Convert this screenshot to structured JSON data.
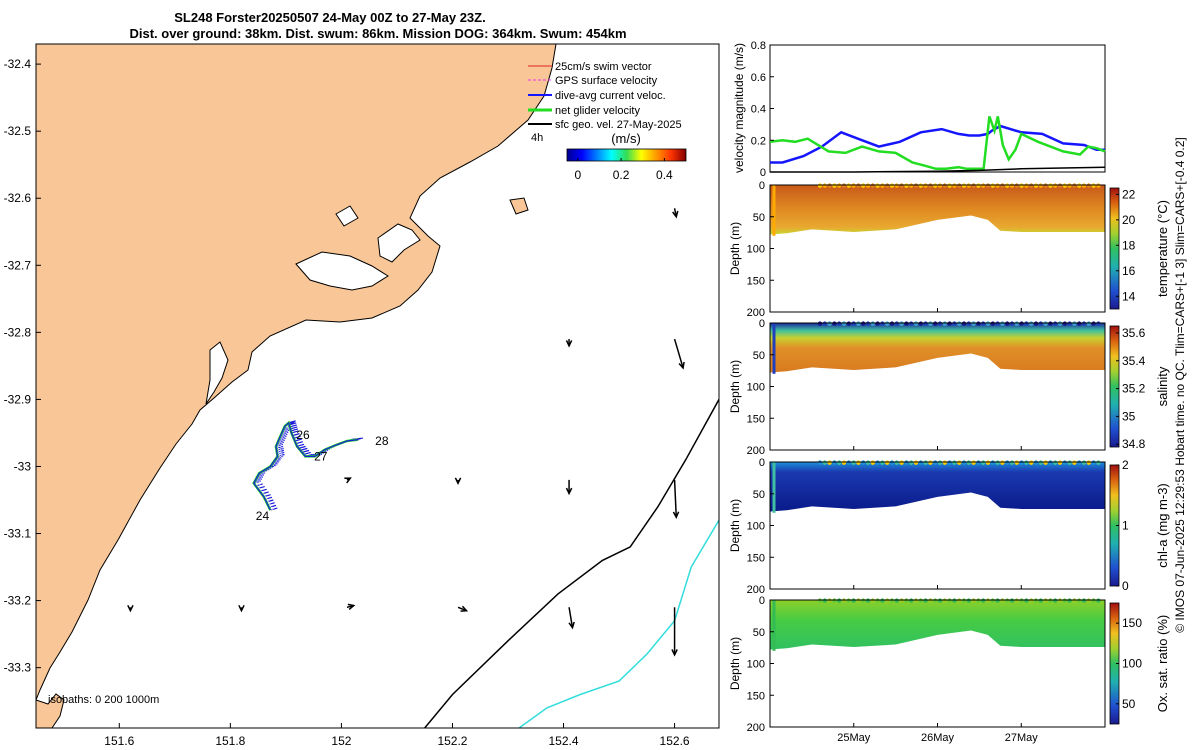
{
  "title": {
    "line1": "SL248 Forster20250507 24-May 00Z to 27-May 23Z.",
    "line2": "Dist. over ground: 38km. Dist. swum: 86km. Mission DOG: 364km. Swum: 454km"
  },
  "footer_note": "© IMOS 07-Jun-2025 12:29:53 Hobart time. no QC. Tlim=CARS+[-1 3] Slim=CARS+[-0.4 0.2]",
  "colors": {
    "land": "#f9c797",
    "track": "#1a1adb",
    "current": "#1515ff",
    "net": "#22dd22",
    "geo": "#000000",
    "isobath_200": "#000000",
    "isobath_1000": "#33dddd",
    "swim": "#dd2222",
    "gps": "#ee33ee"
  },
  "chart_data": [
    {
      "type": "map",
      "xlim": [
        151.45,
        152.68
      ],
      "ylim": [
        -33.39,
        -32.37
      ],
      "x_ticks": [
        151.6,
        151.8,
        152,
        152.2,
        152.4,
        152.6
      ],
      "x_tick_labels": [
        "151.6",
        "151.8",
        "152",
        "152.2",
        "152.4",
        "152.6"
      ],
      "y_ticks": [
        -32.4,
        -32.5,
        -32.6,
        -32.7,
        -32.8,
        -32.9,
        -33,
        -33.1,
        -33.2,
        -33.3
      ],
      "y_tick_labels": [
        "-32.4",
        "-32.5",
        "-32.6",
        "-32.7",
        "-32.8",
        "-32.9",
        "-33",
        "-33.1",
        "-33.2",
        "-33.3"
      ],
      "legend": [
        {
          "label": "25cm/s swim vector",
          "color": "#dd2222"
        },
        {
          "label": "GPS surface velocity",
          "color": "#ee33ee"
        },
        {
          "label": "dive-avg current veloc.",
          "color": "#1515ff"
        },
        {
          "label": "net glider velocity",
          "color": "#22dd22"
        },
        {
          "label": "sfc geo. vel. 27-May-2025",
          "color": "#000000"
        }
      ],
      "legend_extra": "4h",
      "colorbar": {
        "label": "(m/s)",
        "ticks": [
          0,
          0.2,
          0.4
        ],
        "tick_labels": [
          "0",
          "0.2",
          "0.4"
        ],
        "range": [
          -0.05,
          0.5
        ]
      },
      "isobath_label": "isobaths: 0   200  1000m",
      "day_labels": [
        {
          "text": "24",
          "lon": 151.835,
          "lat": -33.074
        },
        {
          "text": "26",
          "lon": 151.908,
          "lat": -32.953
        },
        {
          "text": "27",
          "lon": 151.94,
          "lat": -32.985
        },
        {
          "text": "28",
          "lon": 152.05,
          "lat": -32.962
        }
      ],
      "glider_track": [
        [
          151.872,
          -33.065
        ],
        [
          151.86,
          -33.045
        ],
        [
          151.842,
          -33.025
        ],
        [
          151.852,
          -33.01
        ],
        [
          151.872,
          -33.0
        ],
        [
          151.885,
          -32.985
        ],
        [
          151.882,
          -32.97
        ],
        [
          151.89,
          -32.955
        ],
        [
          151.898,
          -32.94
        ],
        [
          151.905,
          -32.935
        ],
        [
          151.91,
          -32.95
        ],
        [
          151.92,
          -32.97
        ],
        [
          151.935,
          -32.985
        ],
        [
          151.952,
          -32.985
        ],
        [
          151.97,
          -32.975
        ],
        [
          151.99,
          -32.968
        ],
        [
          152.01,
          -32.962
        ],
        [
          152.03,
          -32.96
        ]
      ],
      "isobath_200m": [
        [
          152.15,
          -33.39
        ],
        [
          152.2,
          -33.34
        ],
        [
          152.3,
          -33.26
        ],
        [
          152.39,
          -33.19
        ],
        [
          152.47,
          -33.14
        ],
        [
          152.52,
          -33.12
        ],
        [
          152.57,
          -33.06
        ],
        [
          152.62,
          -32.99
        ],
        [
          152.68,
          -32.9
        ]
      ],
      "isobath_1000m": [
        [
          152.32,
          -33.39
        ],
        [
          152.37,
          -33.36
        ],
        [
          152.43,
          -33.34
        ],
        [
          152.5,
          -33.32
        ],
        [
          152.55,
          -33.28
        ],
        [
          152.6,
          -33.23
        ],
        [
          152.63,
          -33.15
        ],
        [
          152.68,
          -33.08
        ]
      ],
      "geo_vectors": [
        {
          "lon": 152.6,
          "lat": -32.615,
          "u": 0.01,
          "v": -0.05
        },
        {
          "lon": 152.41,
          "lat": -32.81,
          "u": 0.0,
          "v": -0.04
        },
        {
          "lon": 152.6,
          "lat": -32.81,
          "u": 0.05,
          "v": -0.17
        },
        {
          "lon": 152.21,
          "lat": -33.02,
          "u": 0.0,
          "v": -0.02
        },
        {
          "lon": 152.41,
          "lat": -33.02,
          "u": 0.0,
          "v": -0.08
        },
        {
          "lon": 152.6,
          "lat": -33.02,
          "u": 0.01,
          "v": -0.22
        },
        {
          "lon": 152.01,
          "lat": -33.02,
          "u": 0.02,
          "v": 0.01
        },
        {
          "lon": 151.82,
          "lat": -33.21,
          "u": 0.0,
          "v": -0.02
        },
        {
          "lon": 152.01,
          "lat": -33.21,
          "u": 0.04,
          "v": 0.01
        },
        {
          "lon": 152.21,
          "lat": -33.21,
          "u": 0.05,
          "v": -0.02
        },
        {
          "lon": 152.41,
          "lat": -33.21,
          "u": 0.02,
          "v": -0.12
        },
        {
          "lon": 152.6,
          "lat": -33.21,
          "u": 0.0,
          "v": -0.28
        },
        {
          "lon": 151.62,
          "lat": -33.21,
          "u": 0.0,
          "v": -0.02
        }
      ]
    },
    {
      "type": "line",
      "ylabel": "velocity magnitude (m/s)",
      "ylim": [
        0,
        0.8
      ],
      "y_ticks": [
        0,
        0.2,
        0.4,
        0.6,
        0.8
      ],
      "y_tick_labels": [
        "0",
        "0.2",
        "0.4",
        "0.6",
        "0.8"
      ],
      "xlim": [
        0,
        4
      ],
      "series": [
        {
          "name": "dive-avg current",
          "color": "#1515ff",
          "x": [
            0,
            0.15,
            0.4,
            0.62,
            0.85,
            1.05,
            1.3,
            1.55,
            1.8,
            2.05,
            2.25,
            2.38,
            2.5,
            2.6,
            2.65,
            2.75,
            3.0,
            3.25,
            3.5,
            3.75,
            3.9,
            4.0
          ],
          "y": [
            0.06,
            0.06,
            0.1,
            0.16,
            0.25,
            0.21,
            0.16,
            0.19,
            0.25,
            0.27,
            0.24,
            0.23,
            0.23,
            0.24,
            0.26,
            0.29,
            0.25,
            0.24,
            0.18,
            0.17,
            0.14,
            0.14
          ]
        },
        {
          "name": "net glider velocity",
          "color": "#22dd22",
          "x": [
            0,
            0.15,
            0.3,
            0.45,
            0.7,
            0.9,
            1.1,
            1.3,
            1.5,
            1.7,
            1.85,
            1.98,
            2.1,
            2.25,
            2.35,
            2.45,
            2.55,
            2.62,
            2.68,
            2.72,
            2.78,
            2.85,
            2.93,
            3.0,
            3.2,
            3.5,
            3.7,
            3.8,
            3.9,
            4.0
          ],
          "y": [
            0.19,
            0.2,
            0.19,
            0.21,
            0.13,
            0.12,
            0.16,
            0.13,
            0.12,
            0.06,
            0.04,
            0.02,
            0.02,
            0.03,
            0.02,
            0.02,
            0.02,
            0.35,
            0.26,
            0.35,
            0.17,
            0.08,
            0.14,
            0.24,
            0.19,
            0.13,
            0.11,
            0.16,
            0.15,
            0.13
          ]
        },
        {
          "name": "sfc geo. vel.",
          "color": "#000000",
          "x": [
            0,
            1,
            2,
            2.5,
            3,
            3.5,
            4
          ],
          "y": [
            0.0,
            0.0,
            0.005,
            0.01,
            0.02,
            0.025,
            0.03
          ]
        }
      ]
    },
    {
      "type": "heatmap",
      "variable": "temperature",
      "ylabel": "Depth (m)",
      "colorbar_label": "temperature (°C)",
      "colorbar_range": [
        13,
        22.5
      ],
      "colorbar_ticks": [
        14,
        16,
        18,
        20,
        22
      ],
      "colorbar_tick_labels": [
        "14",
        "16",
        "18",
        "20",
        "22"
      ],
      "ylim": [
        0,
        200
      ],
      "y_ticks": [
        0,
        50,
        100,
        150,
        200
      ],
      "y_tick_labels": [
        "0",
        "50",
        "100",
        "150",
        "200"
      ]
    },
    {
      "type": "heatmap",
      "variable": "salinity",
      "ylabel": "Depth (m)",
      "colorbar_label": "salinity",
      "colorbar_range": [
        34.78,
        35.65
      ],
      "colorbar_ticks": [
        34.8,
        35,
        35.2,
        35.4,
        35.6
      ],
      "colorbar_tick_labels": [
        "34.8",
        "35",
        "35.2",
        "35.4",
        "35.6"
      ],
      "ylim": [
        0,
        200
      ],
      "y_ticks": [
        0,
        50,
        100,
        150,
        200
      ],
      "y_tick_labels": [
        "0",
        "50",
        "100",
        "150",
        "200"
      ]
    },
    {
      "type": "heatmap",
      "variable": "chl-a",
      "ylabel": "Depth (m)",
      "colorbar_label": "chl-a (mg m-3)",
      "colorbar_range": [
        0,
        2
      ],
      "colorbar_ticks": [
        0,
        1,
        2
      ],
      "colorbar_tick_labels": [
        "0",
        "1",
        "2"
      ],
      "ylim": [
        0,
        200
      ],
      "y_ticks": [
        0,
        50,
        100,
        150,
        200
      ],
      "y_tick_labels": [
        "0",
        "50",
        "100",
        "150",
        "200"
      ]
    },
    {
      "type": "heatmap",
      "variable": "oxygen saturation",
      "ylabel": "Depth (m)",
      "colorbar_label": "Ox. sat. ratio (%)",
      "colorbar_range": [
        25,
        175
      ],
      "colorbar_ticks": [
        50,
        100,
        150
      ],
      "colorbar_tick_labels": [
        "50",
        "100",
        "150"
      ],
      "ylim": [
        0,
        200
      ],
      "y_ticks": [
        0,
        50,
        100,
        150,
        200
      ],
      "y_tick_labels": [
        "0",
        "50",
        "100",
        "150",
        "200"
      ],
      "x_tick_labels": [
        "25May",
        "26May",
        "27May"
      ],
      "x_ticks": [
        1,
        2,
        3
      ]
    }
  ]
}
